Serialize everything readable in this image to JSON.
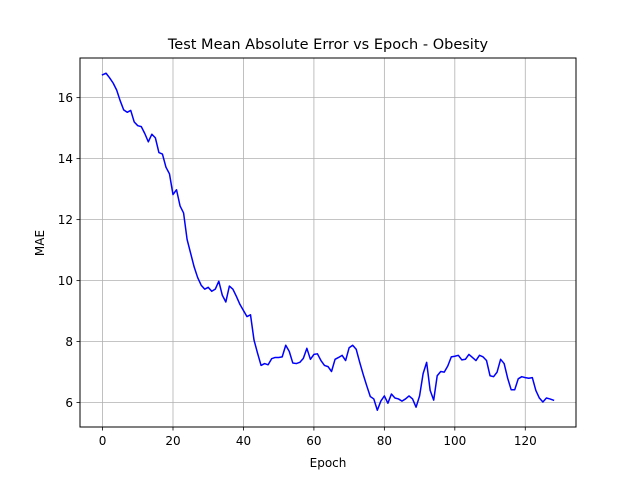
{
  "chart_data": {
    "type": "line",
    "title": "Test Mean Absolute Error vs Epoch - Obesity",
    "xlabel": "Epoch",
    "ylabel": "MAE",
    "xlim": [
      -6.4,
      134.4
    ],
    "ylim": [
      5.2,
      17.3
    ],
    "xticks": [
      0,
      20,
      40,
      60,
      80,
      100,
      120
    ],
    "yticks": [
      6,
      8,
      10,
      12,
      14,
      16
    ],
    "grid": true,
    "series": [
      {
        "color": "#0000ff",
        "x": [
          0,
          1,
          2,
          3,
          4,
          5,
          6,
          7,
          8,
          9,
          10,
          11,
          12,
          13,
          14,
          15,
          16,
          17,
          18,
          19,
          20,
          21,
          22,
          23,
          24,
          25,
          26,
          27,
          28,
          29,
          30,
          31,
          32,
          33,
          34,
          35,
          36,
          37,
          38,
          39,
          40,
          41,
          42,
          43,
          44,
          45,
          46,
          47,
          48,
          49,
          50,
          51,
          52,
          53,
          54,
          55,
          56,
          57,
          58,
          59,
          60,
          61,
          62,
          63,
          64,
          65,
          66,
          67,
          68,
          69,
          70,
          71,
          72,
          73,
          74,
          75,
          76,
          77,
          78,
          79,
          80,
          81,
          82,
          83,
          84,
          85,
          86,
          87,
          88,
          89,
          90,
          91,
          92,
          93,
          94,
          95,
          96,
          97,
          98,
          99,
          100,
          101,
          102,
          103,
          104,
          105,
          106,
          107,
          108,
          109,
          110,
          111,
          112,
          113,
          114,
          115,
          116,
          117,
          118,
          119,
          120,
          121,
          122,
          123,
          124,
          125,
          126,
          127,
          128
        ],
        "values": [
          16.75,
          16.8,
          16.65,
          16.48,
          16.25,
          15.9,
          15.6,
          15.52,
          15.58,
          15.2,
          15.08,
          15.05,
          14.82,
          14.55,
          14.8,
          14.68,
          14.2,
          14.15,
          13.72,
          13.5,
          12.82,
          12.98,
          12.45,
          12.22,
          11.35,
          10.9,
          10.45,
          10.1,
          9.85,
          9.72,
          9.78,
          9.65,
          9.72,
          9.98,
          9.52,
          9.3,
          9.82,
          9.72,
          9.48,
          9.22,
          9.02,
          8.82,
          8.88,
          8.05,
          7.62,
          7.22,
          7.28,
          7.24,
          7.44,
          7.48,
          7.48,
          7.5,
          7.88,
          7.68,
          7.3,
          7.28,
          7.32,
          7.45,
          7.78,
          7.42,
          7.58,
          7.6,
          7.38,
          7.22,
          7.18,
          7.02,
          7.42,
          7.48,
          7.55,
          7.38,
          7.8,
          7.88,
          7.75,
          7.32,
          6.92,
          6.55,
          6.2,
          6.12,
          5.75,
          6.05,
          6.22,
          5.98,
          6.28,
          6.15,
          6.12,
          6.05,
          6.12,
          6.22,
          6.12,
          5.85,
          6.22,
          6.95,
          7.32,
          6.4,
          6.08,
          6.88,
          7.02,
          7.0,
          7.2,
          7.5,
          7.52,
          7.55,
          7.4,
          7.42,
          7.58,
          7.48,
          7.38,
          7.55,
          7.5,
          7.38,
          6.88,
          6.85,
          7.0,
          7.42,
          7.28,
          6.8,
          6.42,
          6.42,
          6.78,
          6.85,
          6.82,
          6.8,
          6.82,
          6.4,
          6.15,
          6.02,
          6.15,
          6.12,
          6.08
        ]
      }
    ]
  }
}
